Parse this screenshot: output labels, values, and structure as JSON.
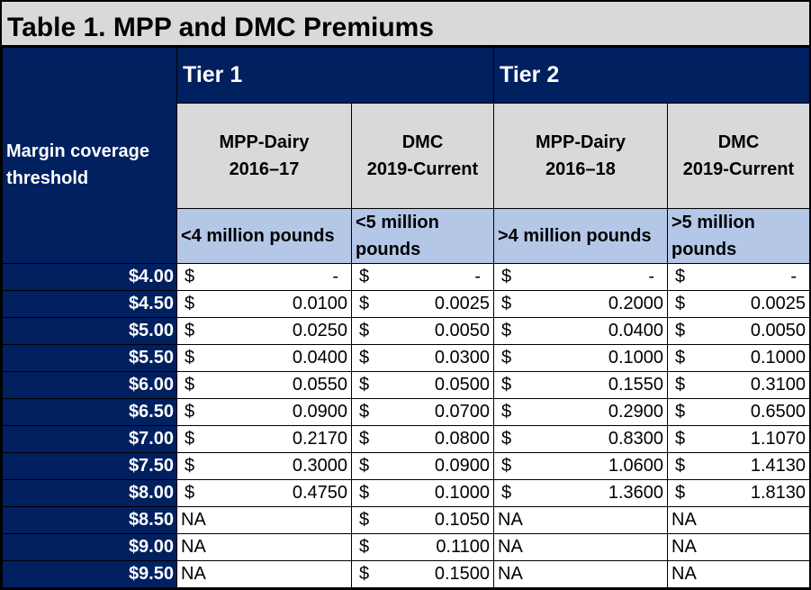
{
  "title": "Table 1. MPP and DMC Premiums",
  "tiers": [
    "Tier 1",
    "Tier 2"
  ],
  "threshold_label": "Margin coverage threshold",
  "programs": [
    {
      "name": "MPP-Dairy",
      "years": "2016–17"
    },
    {
      "name": "DMC",
      "years": "2019-Current"
    },
    {
      "name": "MPP-Dairy",
      "years": "2016–18"
    },
    {
      "name": "DMC",
      "years": "2019-Current"
    }
  ],
  "volume_labels": [
    "<4 million pounds",
    "<5 million pounds",
    ">4 million pounds",
    ">5 million pounds"
  ],
  "currency_symbol": "$",
  "rows": [
    {
      "margin": "$4.00",
      "values": [
        "-",
        "-",
        "-",
        "-"
      ]
    },
    {
      "margin": "$4.50",
      "values": [
        "0.0100",
        "0.0025",
        "0.2000",
        "0.0025"
      ]
    },
    {
      "margin": "$5.00",
      "values": [
        "0.0250",
        "0.0050",
        "0.0400",
        "0.0050"
      ]
    },
    {
      "margin": "$5.50",
      "values": [
        "0.0400",
        "0.0300",
        "0.1000",
        "0.1000"
      ]
    },
    {
      "margin": "$6.00",
      "values": [
        "0.0550",
        "0.0500",
        "0.1550",
        "0.3100"
      ]
    },
    {
      "margin": "$6.50",
      "values": [
        "0.0900",
        "0.0700",
        "0.2900",
        "0.6500"
      ]
    },
    {
      "margin": "$7.00",
      "values": [
        "0.2170",
        "0.0800",
        "0.8300",
        "1.1070"
      ]
    },
    {
      "margin": "$7.50",
      "values": [
        "0.3000",
        "0.0900",
        "1.0600",
        "1.4130"
      ]
    },
    {
      "margin": "$8.00",
      "values": [
        "0.4750",
        "0.1000",
        "1.3600",
        "1.8130"
      ]
    },
    {
      "margin": "$8.50",
      "values": [
        "NA",
        "0.1050",
        "NA",
        "NA"
      ]
    },
    {
      "margin": "$9.00",
      "values": [
        "NA",
        "0.1100",
        "NA",
        "NA"
      ]
    },
    {
      "margin": "$9.50",
      "values": [
        "NA",
        "0.1500",
        "NA",
        "NA"
      ]
    }
  ],
  "colors": {
    "header_navy": "#002060",
    "subheader_gray": "#d9d9d9",
    "label_blue": "#b4c7e7"
  }
}
